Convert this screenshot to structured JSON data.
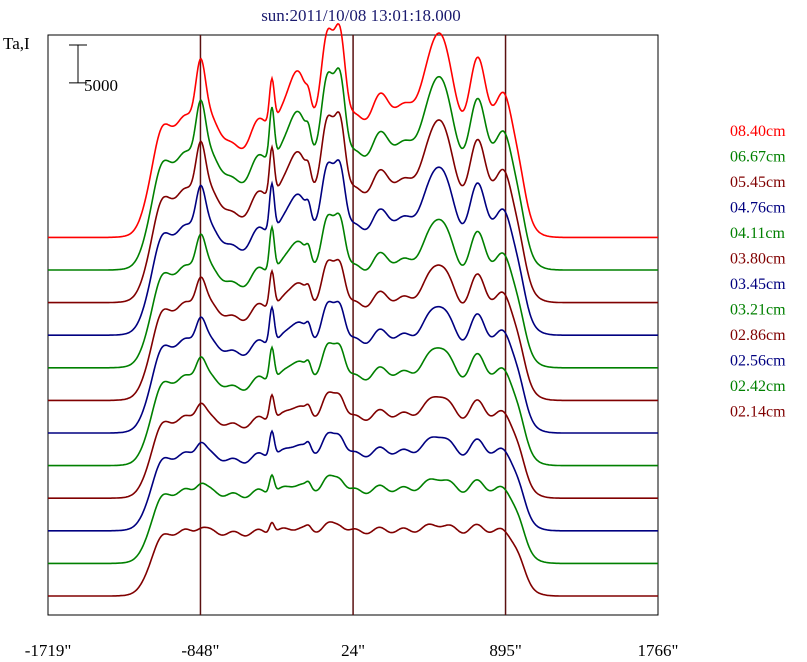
{
  "chart_data": {
    "type": "line",
    "title": "sun:2011/10/08 13:01:18.000",
    "ylabel": "Ta,I",
    "scale_bar_label": "5000",
    "x_tick_labels": [
      "-1719\"",
      "-848\"",
      "24\"",
      "895\"",
      "1766\""
    ],
    "x_ticks": [
      -1719,
      -848,
      24,
      895,
      1766
    ],
    "xlim": [
      -1719,
      1766
    ],
    "scale_bar_value": 5000,
    "offset_per_series": 4300,
    "reference_lines_x": [
      -848,
      24,
      895
    ],
    "series": [
      {
        "name": "08.40cm",
        "color": "#ff0000",
        "baseline": 47300,
        "peak": 15500,
        "spike": 6000,
        "waves": 1.0
      },
      {
        "name": "06.67cm",
        "color": "#008000",
        "baseline": 43000,
        "peak": 15000,
        "spike": 7000,
        "waves": 0.95
      },
      {
        "name": "05.45cm",
        "color": "#800000",
        "baseline": 38700,
        "peak": 14500,
        "spike": 6500,
        "waves": 0.9
      },
      {
        "name": "04.76cm",
        "color": "#000080",
        "baseline": 34400,
        "peak": 14000,
        "spike": 6500,
        "waves": 0.8
      },
      {
        "name": "04.11cm",
        "color": "#008000",
        "baseline": 30100,
        "peak": 13000,
        "spike": 6000,
        "waves": 0.7
      },
      {
        "name": "03.80cm",
        "color": "#800000",
        "baseline": 25800,
        "peak": 12500,
        "spike": 5000,
        "waves": 0.6
      },
      {
        "name": "03.45cm",
        "color": "#000080",
        "baseline": 21500,
        "peak": 12000,
        "spike": 5000,
        "waves": 0.55
      },
      {
        "name": "03.21cm",
        "color": "#008000",
        "baseline": 17200,
        "peak": 11500,
        "spike": 4500,
        "waves": 0.5
      },
      {
        "name": "02.86cm",
        "color": "#800000",
        "baseline": 12900,
        "peak": 10500,
        "spike": 3500,
        "waves": 0.4
      },
      {
        "name": "02.56cm",
        "color": "#000080",
        "baseline": 8600,
        "peak": 10000,
        "spike": 3500,
        "waves": 0.35
      },
      {
        "name": "02.42cm",
        "color": "#008000",
        "baseline": 4300,
        "peak": 9500,
        "spike": 2500,
        "waves": 0.25
      },
      {
        "name": "02.14cm",
        "color": "#800000",
        "baseline": 0,
        "peak": 8500,
        "spike": 1500,
        "waves": 0.15
      }
    ],
    "ylim": [
      -2500,
      74000
    ],
    "legend_position": "right",
    "grid": false
  }
}
